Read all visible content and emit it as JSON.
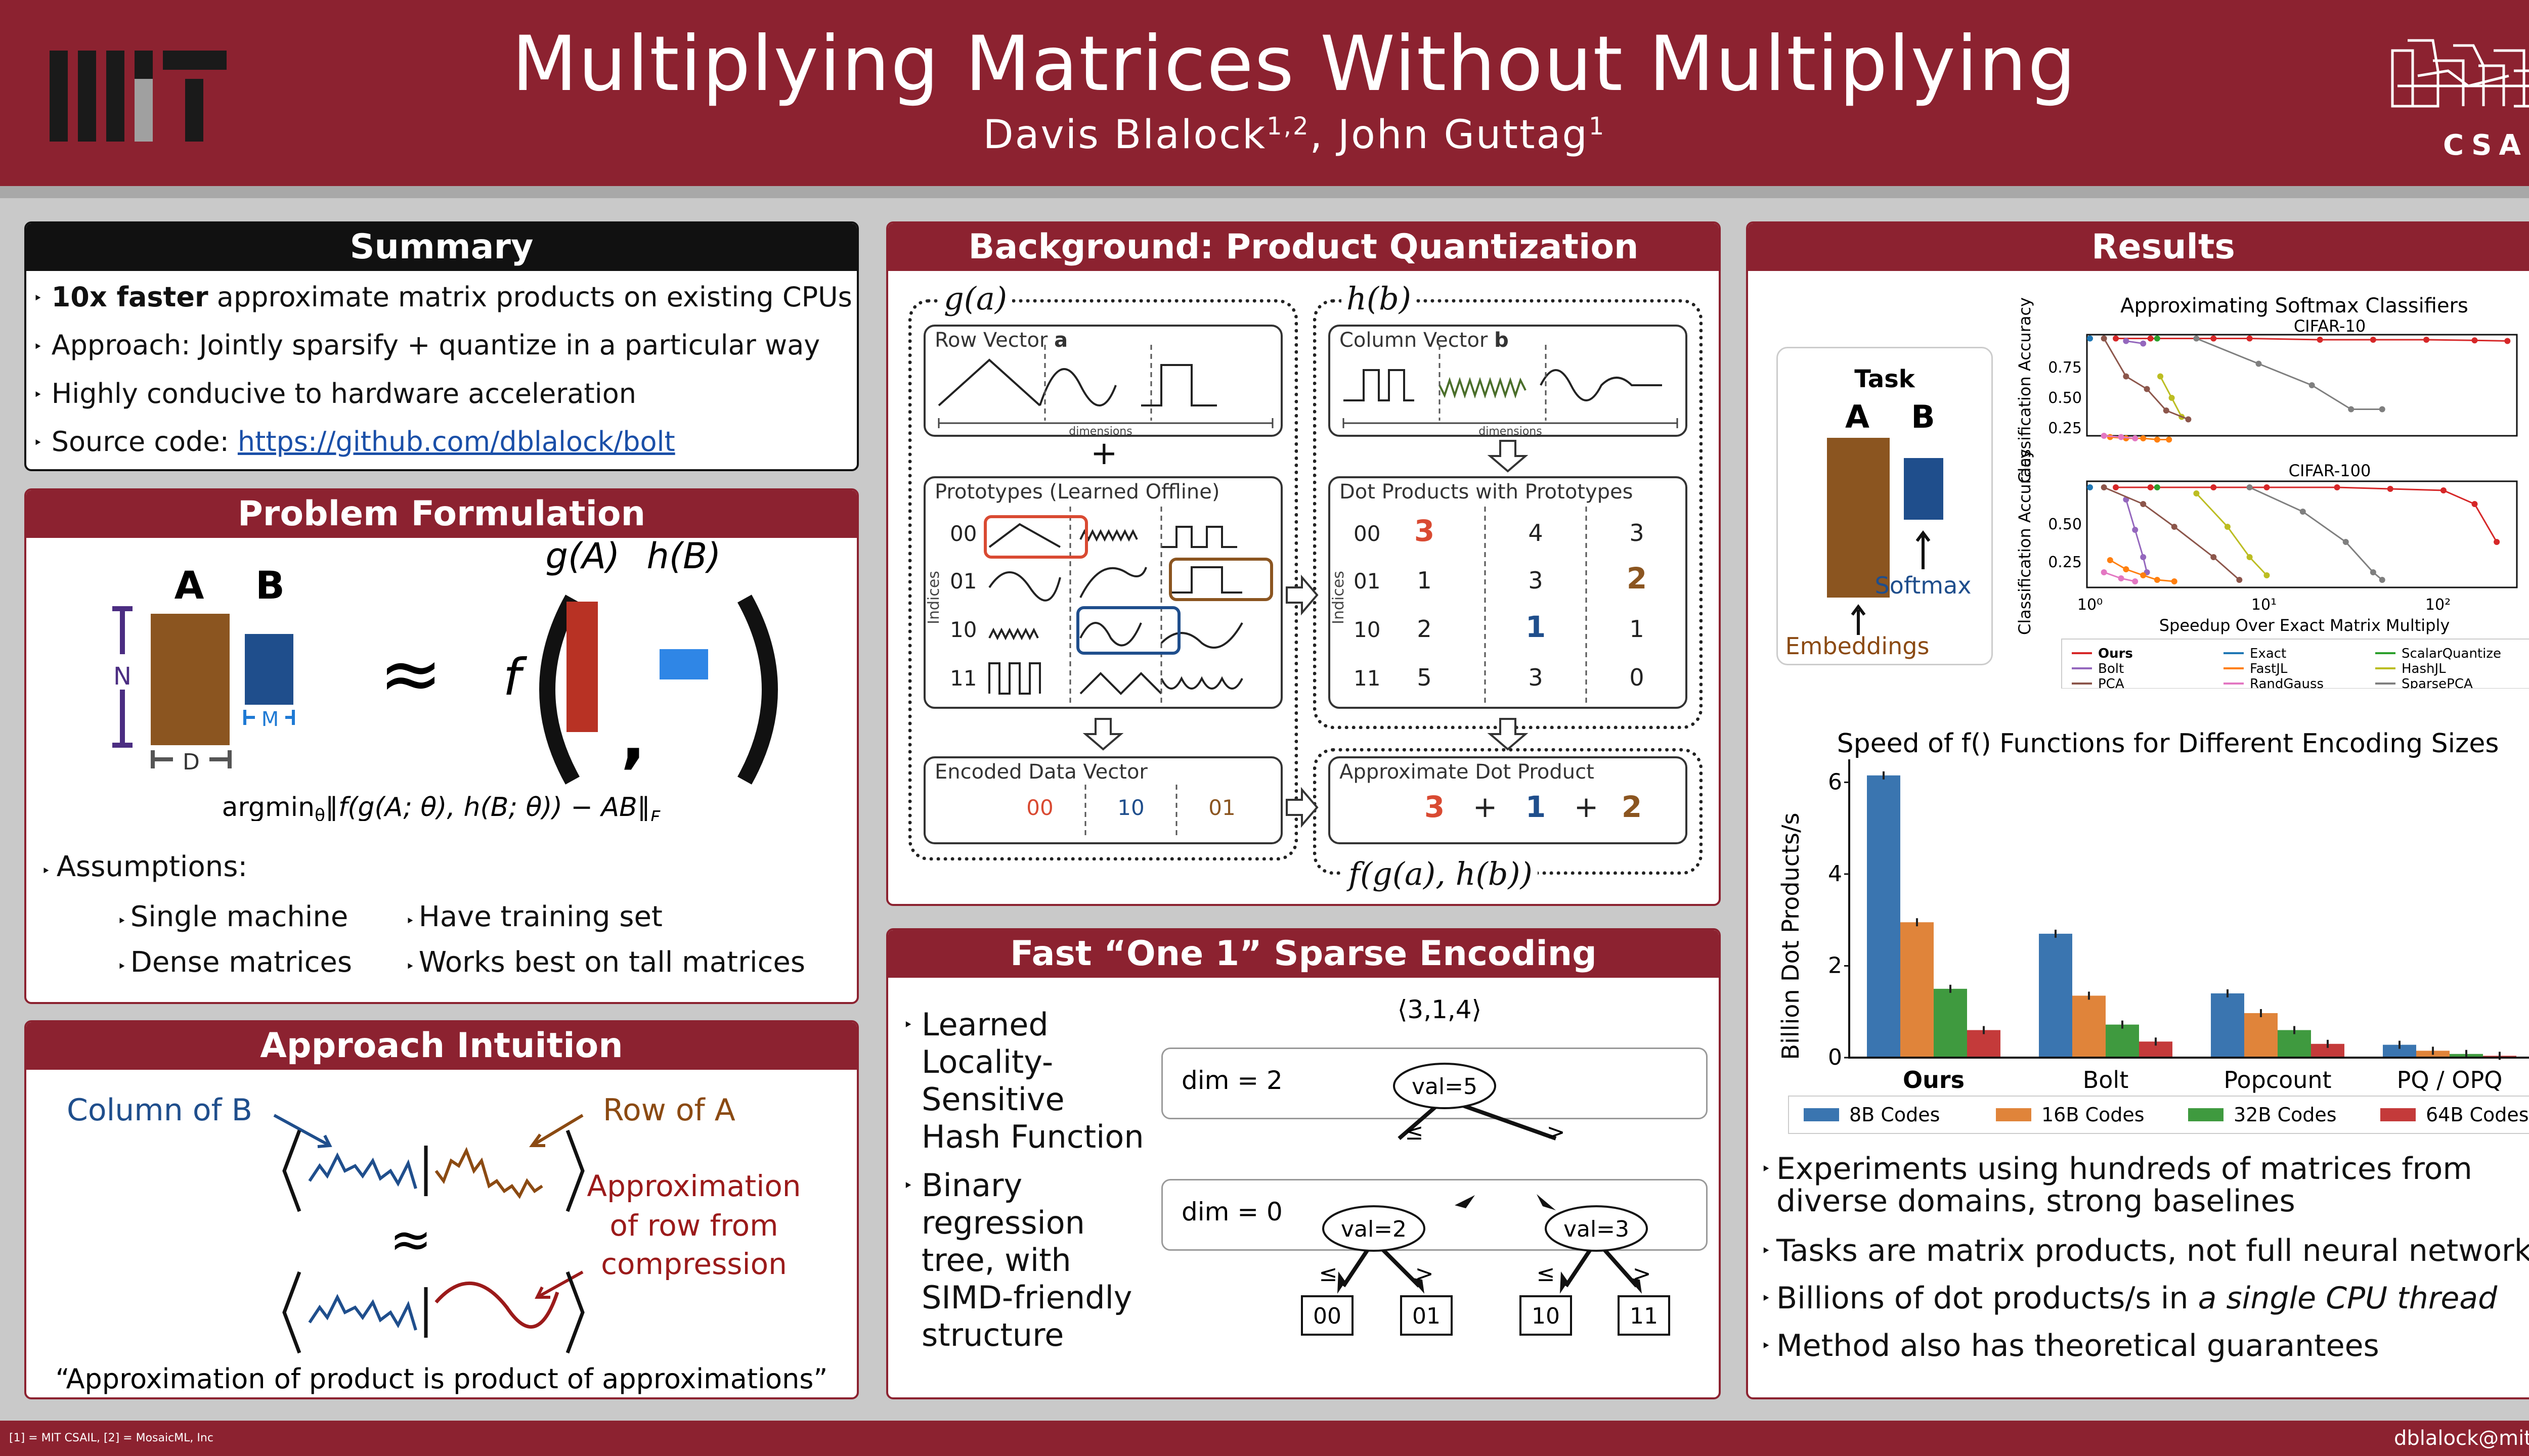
{
  "header": {
    "logo_left": "MIT",
    "title": "Multiplying Matrices Without Multiplying",
    "author1": "Davis Blalock",
    "author1_sup": "1,2",
    "author_sep": ", ",
    "author2": "John Guttag",
    "author2_sup": "1",
    "logo_right": "CSAIL"
  },
  "summary": {
    "heading": "Summary",
    "bullets": [
      {
        "bold": "10x faster",
        "text": " approximate matrix products on existing CPUs"
      },
      {
        "text": "Approach: Jointly sparsify + quantize in a particular way"
      },
      {
        "text": "Highly conducive to hardware acceleration"
      },
      {
        "text": "Source code: ",
        "link": "https://github.com/dblalock/bolt"
      }
    ]
  },
  "problem": {
    "heading": "Problem Formulation",
    "matA": "A",
    "matB": "B",
    "dimN": "N",
    "dimD": "D",
    "dimM": "M",
    "approx": "≈",
    "f": "f",
    "gA": "g(A)",
    "hB": "h(B)",
    "comma": ",",
    "objective": "argmin",
    "objective_sub": "θ",
    "objective_rest": "‖f(g(A; θ), h(B; θ)) − AB‖",
    "objective_F": "F",
    "assumptions_label": "Assumptions:",
    "assumptions": [
      "Single machine",
      "Have training set",
      "Dense matrices",
      "Works best on tall matrices"
    ]
  },
  "intuition": {
    "heading": "Approach Intuition",
    "col_b": "Column of B",
    "row_a": "Row of A",
    "approx_label": "Approximation of row from compression",
    "approx_line1": "Approximation",
    "approx_line2": "of row from",
    "approx_line3": "compression",
    "approx": "≈",
    "quote": "“Approximation of product is product of approximations”"
  },
  "pq": {
    "heading": "Background: Product Quantization",
    "ga": "g(a)",
    "hb": "h(b)",
    "row_vector": "Row Vector ",
    "row_vector_b": "a",
    "col_vector": "Column Vector ",
    "col_vector_b": "b",
    "dimensions": "dimensions",
    "plus": "+",
    "prototypes": "Prototypes (Learned Offline)",
    "dot_products": "Dot Products with Prototypes",
    "indices": "Indices",
    "codes": [
      "00",
      "01",
      "10",
      "11"
    ],
    "dot_table": [
      [
        "3",
        "4",
        "3"
      ],
      [
        "1",
        "3",
        "2"
      ],
      [
        "2",
        "1",
        "1"
      ],
      [
        "5",
        "3",
        "0"
      ]
    ],
    "encoded": "Encoded Data Vector",
    "encoded_codes": [
      "00",
      "10",
      "01"
    ],
    "approx_dot": "Approximate Dot Product",
    "approx_terms": [
      "3",
      "+",
      "1",
      "+",
      "2"
    ],
    "fg": "f(g(a), h(b))"
  },
  "sparse": {
    "heading": "Fast “One 1” Sparse Encoding",
    "bullet1": [
      "Learned",
      "Locality-",
      "Sensitive",
      "Hash Function"
    ],
    "bullet2": [
      "Binary",
      "regression",
      "tree, with",
      "SIMD-friendly",
      "structure"
    ],
    "vector": "⟨3,1,4⟩",
    "dim2": "dim = 2",
    "dim0": "dim = 0",
    "root": "val=5",
    "left": "val=2",
    "right": "val=3",
    "le": "≤",
    "gt": ">",
    "leaves": [
      "00",
      "01",
      "10",
      "11"
    ]
  },
  "results": {
    "heading": "Results",
    "task": "Task",
    "A": "A",
    "B": "B",
    "embeddings": "Embeddings",
    "softmax": "Softmax",
    "bullets": [
      [
        "Experiments using hundreds of matrices from",
        "diverse domains, strong baselines"
      ],
      [
        "Tasks are matrix products, not full neural networks."
      ],
      [
        "Billions of dot products/s in ",
        "a single CPU thread"
      ],
      [
        "Method also has theoretical guarantees"
      ]
    ]
  },
  "chart_data": [
    {
      "type": "line",
      "title": "Approximating Softmax Classifiers",
      "subtitle": "CIFAR-10",
      "ylabel": "Classification Accuracy",
      "xscale": "log",
      "yticks": [
        "0.25",
        "0.50",
        "0.75"
      ],
      "ylim": [
        0.15,
        0.95
      ],
      "xlim": [
        1,
        250
      ],
      "series": [
        {
          "name": "Ours",
          "color": "#d62728",
          "x": [
            1.4,
            2.2,
            5,
            8,
            20,
            40,
            80,
            150,
            230
          ],
          "y": [
            0.92,
            0.92,
            0.92,
            0.92,
            0.91,
            0.91,
            0.91,
            0.905,
            0.9
          ]
        },
        {
          "name": "Exact",
          "color": "#1f77b4",
          "x": [
            1
          ],
          "y": [
            0.92
          ]
        },
        {
          "name": "ScalarQuantize",
          "color": "#2ca02c",
          "x": [
            2.4
          ],
          "y": [
            0.92
          ]
        },
        {
          "name": "Bolt",
          "color": "#9467bd",
          "x": [
            1.6,
            2.0
          ],
          "y": [
            0.9,
            0.88
          ]
        },
        {
          "name": "FastJL",
          "color": "#ff7f0e",
          "x": [
            1.3,
            1.6,
            2.0,
            2.4,
            2.8
          ],
          "y": [
            0.14,
            0.13,
            0.13,
            0.12,
            0.12
          ]
        },
        {
          "name": "HashJL",
          "color": "#bcbd22",
          "x": [
            2.5,
            2.9,
            3.3
          ],
          "y": [
            0.62,
            0.45,
            0.3
          ]
        },
        {
          "name": "PCA",
          "color": "#8c564b",
          "x": [
            1.2,
            1.6,
            2.1,
            2.7,
            3.6
          ],
          "y": [
            0.92,
            0.62,
            0.52,
            0.35,
            0.28
          ]
        },
        {
          "name": "RandGauss",
          "color": "#e377c2",
          "x": [
            1.2,
            1.5,
            1.8
          ],
          "y": [
            0.15,
            0.14,
            0.13
          ]
        },
        {
          "name": "SparsePCA",
          "color": "#7f7f7f",
          "x": [
            4,
            9,
            18,
            30,
            45
          ],
          "y": [
            0.92,
            0.72,
            0.55,
            0.36,
            0.36
          ]
        }
      ]
    },
    {
      "type": "line",
      "subtitle": "CIFAR-100",
      "xlabel": "Speedup Over Exact Matrix Multiply",
      "ylabel": "Classification Accuracy",
      "xscale": "log",
      "xticks": [
        "10⁰",
        "10¹",
        "10²"
      ],
      "yticks": [
        "0.25",
        "0.50"
      ],
      "ylim": [
        0.0,
        0.7
      ],
      "xlim": [
        1,
        250
      ],
      "series": [
        {
          "name": "Ours",
          "color": "#d62728",
          "x": [
            1.4,
            2.2,
            5,
            10,
            25,
            50,
            100,
            150,
            200
          ],
          "y": [
            0.66,
            0.66,
            0.66,
            0.66,
            0.66,
            0.65,
            0.64,
            0.55,
            0.3
          ]
        },
        {
          "name": "Exact",
          "color": "#1f77b4",
          "x": [
            1
          ],
          "y": [
            0.66
          ]
        },
        {
          "name": "ScalarQuantize",
          "color": "#2ca02c",
          "x": [
            2.4
          ],
          "y": [
            0.66
          ]
        },
        {
          "name": "Bolt",
          "color": "#9467bd",
          "x": [
            1.6,
            1.8,
            2.0,
            2.1
          ],
          "y": [
            0.58,
            0.38,
            0.2,
            0.1
          ]
        },
        {
          "name": "FastJL",
          "color": "#ff7f0e",
          "x": [
            1.3,
            1.6,
            2.0,
            2.4,
            3.0
          ],
          "y": [
            0.18,
            0.12,
            0.08,
            0.05,
            0.04
          ]
        },
        {
          "name": "HashJL",
          "color": "#bcbd22",
          "x": [
            4,
            6,
            8,
            10
          ],
          "y": [
            0.62,
            0.4,
            0.2,
            0.08
          ]
        },
        {
          "name": "PCA",
          "color": "#8c564b",
          "x": [
            1.2,
            2,
            3,
            5,
            7
          ],
          "y": [
            0.66,
            0.55,
            0.4,
            0.2,
            0.05
          ]
        },
        {
          "name": "RandGauss",
          "color": "#e377c2",
          "x": [
            1.2,
            1.5,
            1.8
          ],
          "y": [
            0.1,
            0.06,
            0.04
          ]
        },
        {
          "name": "SparsePCA",
          "color": "#7f7f7f",
          "x": [
            8,
            16,
            28,
            40,
            45
          ],
          "y": [
            0.66,
            0.5,
            0.3,
            0.1,
            0.05
          ]
        }
      ]
    },
    {
      "type": "bar",
      "title": "Speed of f() Functions for Different Encoding Sizes",
      "ylabel": "Billion Dot Products/s",
      "categories": [
        "Ours",
        "Bolt",
        "Popcount",
        "PQ / OPQ"
      ],
      "ylim": [
        0,
        6.5
      ],
      "yticks": [
        "0",
        "2",
        "4",
        "6"
      ],
      "legend": "bottom",
      "series": [
        {
          "name": "8B Codes",
          "color": "#3a75b0",
          "values": [
            6.15,
            2.7,
            1.4,
            0.28
          ]
        },
        {
          "name": "16B Codes",
          "color": "#e0843a",
          "values": [
            2.95,
            1.35,
            0.97,
            0.15
          ]
        },
        {
          "name": "32B Codes",
          "color": "#3f9a3f",
          "values": [
            1.5,
            0.72,
            0.6,
            0.08
          ]
        },
        {
          "name": "64B Codes",
          "color": "#c43a3a",
          "values": [
            0.6,
            0.35,
            0.3,
            0.04
          ]
        }
      ]
    }
  ],
  "footer": {
    "left": "[1] = MIT CSAIL, [2] = MosaicML, Inc",
    "right": "dblalock@mit.edu"
  }
}
